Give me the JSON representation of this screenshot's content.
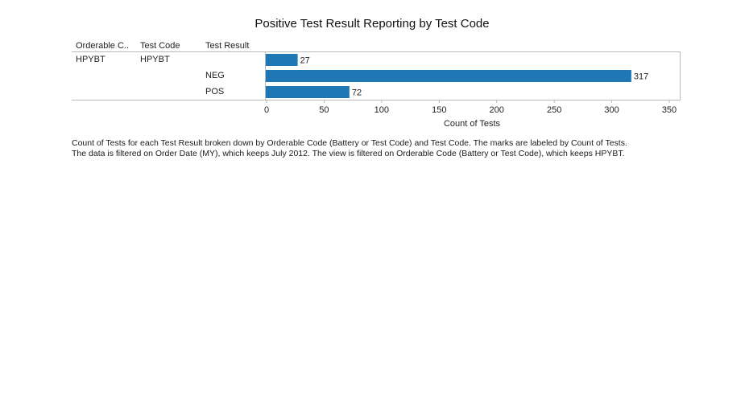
{
  "chart_data": {
    "type": "bar",
    "title": "Positive Test Result Reporting by Test Code",
    "row_headers": [
      "Orderable C..",
      "Test Code",
      "Test Result"
    ],
    "rows": [
      {
        "orderable_code": "HPYBT",
        "test_code": "HPYBT",
        "test_result": "",
        "value": 27
      },
      {
        "orderable_code": "",
        "test_code": "",
        "test_result": "NEG",
        "value": 317
      },
      {
        "orderable_code": "",
        "test_code": "",
        "test_result": "POS",
        "value": 72
      }
    ],
    "values": [
      27,
      317,
      72
    ],
    "xlabel": "Count of Tests",
    "xlim": [
      0,
      350
    ],
    "xticks": [
      0,
      50,
      100,
      150,
      200,
      250,
      300,
      350
    ],
    "bar_color": "#1f77b4",
    "data_labels": true
  },
  "caption": {
    "line1": "Count of Tests for each Test Result broken down by Orderable Code (Battery or Test Code) and Test Code.  The marks are labeled by Count of Tests.",
    "line2": "The data is filtered on Order Date (MY), which keeps July 2012. The view is filtered on Orderable Code (Battery or Test Code), which keeps HPYBT."
  }
}
